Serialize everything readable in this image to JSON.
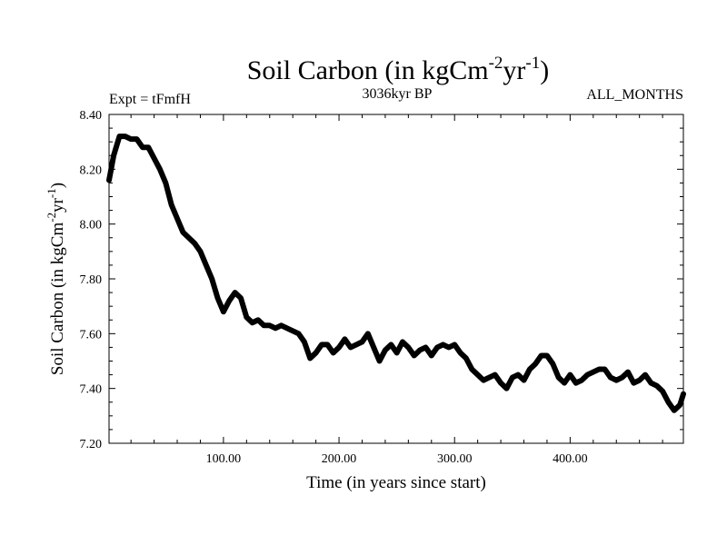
{
  "chart_data": {
    "type": "line",
    "title": {
      "main": "Soil Carbon (in kgCm",
      "sup1": "-2",
      "mid": "yr",
      "sup2": "-1",
      "end": ")"
    },
    "left_note": "Expt = tFmfH",
    "center_note": "3036kyr BP",
    "right_note": "ALL_MONTHS",
    "xlabel": "Time (in years since start)",
    "ylabel": {
      "main": "Soil Carbon (in kgCm",
      "sup1": "-2",
      "mid": "yr",
      "sup2": "-1",
      "end": ")"
    },
    "xlim": [
      1,
      498
    ],
    "ylim": [
      7.2,
      8.4
    ],
    "x_ticks": [
      {
        "value": 100,
        "label": "100.00"
      },
      {
        "value": 200,
        "label": "200.00"
      },
      {
        "value": 300,
        "label": "300.00"
      },
      {
        "value": 400,
        "label": "400.00"
      }
    ],
    "y_ticks": [
      {
        "value": 7.2,
        "label": "7.20"
      },
      {
        "value": 7.4,
        "label": "7.40"
      },
      {
        "value": 7.6,
        "label": "7.60"
      },
      {
        "value": 7.8,
        "label": "7.80"
      },
      {
        "value": 8.0,
        "label": "8.00"
      },
      {
        "value": 8.2,
        "label": "8.20"
      },
      {
        "value": 8.4,
        "label": "8.40"
      }
    ],
    "series": [
      {
        "name": "Soil Carbon",
        "color": "#000000",
        "x": [
          1,
          5,
          10,
          15,
          20,
          25,
          30,
          35,
          40,
          45,
          50,
          55,
          60,
          65,
          70,
          75,
          80,
          85,
          90,
          95,
          100,
          105,
          110,
          115,
          120,
          125,
          130,
          135,
          140,
          145,
          150,
          155,
          160,
          165,
          170,
          175,
          180,
          185,
          190,
          195,
          200,
          205,
          210,
          215,
          220,
          225,
          230,
          235,
          240,
          245,
          250,
          255,
          260,
          265,
          270,
          275,
          280,
          285,
          290,
          295,
          300,
          305,
          310,
          315,
          320,
          325,
          330,
          335,
          340,
          345,
          350,
          355,
          360,
          365,
          370,
          375,
          380,
          385,
          390,
          395,
          400,
          405,
          410,
          415,
          420,
          425,
          430,
          435,
          440,
          445,
          450,
          455,
          460,
          465,
          470,
          475,
          480,
          485,
          490,
          495,
          498
        ],
        "values": [
          8.16,
          8.25,
          8.32,
          8.32,
          8.31,
          8.31,
          8.28,
          8.28,
          8.24,
          8.2,
          8.15,
          8.07,
          8.02,
          7.97,
          7.95,
          7.93,
          7.9,
          7.85,
          7.8,
          7.73,
          7.68,
          7.72,
          7.75,
          7.73,
          7.66,
          7.64,
          7.65,
          7.63,
          7.63,
          7.62,
          7.63,
          7.62,
          7.61,
          7.6,
          7.57,
          7.51,
          7.53,
          7.56,
          7.56,
          7.53,
          7.55,
          7.58,
          7.55,
          7.56,
          7.57,
          7.6,
          7.55,
          7.5,
          7.54,
          7.56,
          7.53,
          7.57,
          7.55,
          7.52,
          7.54,
          7.55,
          7.52,
          7.55,
          7.56,
          7.55,
          7.56,
          7.53,
          7.51,
          7.47,
          7.45,
          7.43,
          7.44,
          7.45,
          7.42,
          7.4,
          7.44,
          7.45,
          7.43,
          7.47,
          7.49,
          7.52,
          7.52,
          7.49,
          7.44,
          7.42,
          7.45,
          7.42,
          7.43,
          7.45,
          7.46,
          7.47,
          7.47,
          7.44,
          7.43,
          7.44,
          7.46,
          7.42,
          7.43,
          7.45,
          7.42,
          7.41,
          7.39,
          7.35,
          7.32,
          7.34,
          7.38
        ]
      }
    ]
  }
}
